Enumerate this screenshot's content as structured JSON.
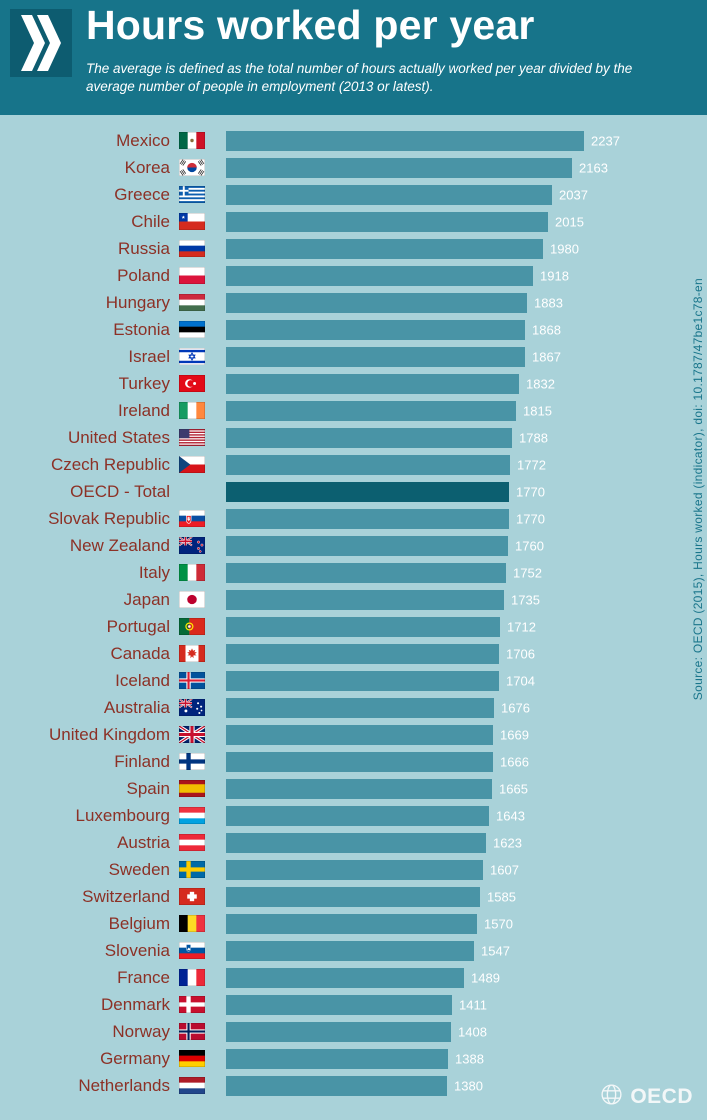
{
  "header": {
    "title": "Hours worked per year",
    "subtitle": "The average is defined as the total number of hours actually worked per year divided by the average number of people in employment (2013 or latest)."
  },
  "source_note": "Source: OECD (2015), Hours worked (indicator), doi: 10.1787/47be1c78-en",
  "footer": {
    "logo_text": "OECD"
  },
  "colors": {
    "header_bg": "#17748a",
    "logo_bg": "#0d5c70",
    "page_bg": "#a9d2d9",
    "bar": "#4994a6",
    "bar_highlight": "#0c5f70",
    "label_text": "#8c3126",
    "value_text": "#ffffff",
    "source_text": "#19758b"
  },
  "chart_data": {
    "type": "bar",
    "orientation": "horizontal",
    "title": "Hours worked per year",
    "value_labels_shown": true,
    "xlim": [
      0,
      2300
    ],
    "highlight_index": 13,
    "highlight_category": "OECD - Total",
    "categories": [
      "Mexico",
      "Korea",
      "Greece",
      "Chile",
      "Russia",
      "Poland",
      "Hungary",
      "Estonia",
      "Israel",
      "Turkey",
      "Ireland",
      "United States",
      "Czech Republic",
      "OECD - Total",
      "Slovak Republic",
      "New Zealand",
      "Italy",
      "Japan",
      "Portugal",
      "Canada",
      "Iceland",
      "Australia",
      "United Kingdom",
      "Finland",
      "Spain",
      "Luxembourg",
      "Austria",
      "Sweden",
      "Switzerland",
      "Belgium",
      "Slovenia",
      "France",
      "Denmark",
      "Norway",
      "Germany",
      "Netherlands"
    ],
    "values": [
      2237,
      2163,
      2037,
      2015,
      1980,
      1918,
      1883,
      1868,
      1867,
      1832,
      1815,
      1788,
      1772,
      1770,
      1770,
      1760,
      1752,
      1735,
      1712,
      1706,
      1704,
      1676,
      1669,
      1666,
      1665,
      1643,
      1623,
      1607,
      1585,
      1570,
      1547,
      1489,
      1411,
      1408,
      1388,
      1380
    ],
    "flags": [
      {
        "t": "v",
        "c": [
          "#006847",
          "#ffffff",
          "#ce1126"
        ],
        "emblem": "#8a6d3b"
      },
      {
        "t": "kr",
        "bg": "#ffffff",
        "red": "#cd2e3a",
        "blue": "#0047a0",
        "marks": "#222222"
      },
      {
        "t": "gr",
        "blue": "#0d5eaf",
        "white": "#ffffff"
      },
      {
        "t": "cl",
        "red": "#d52b1e",
        "blue": "#0039a6",
        "white": "#ffffff"
      },
      {
        "t": "h",
        "c": [
          "#ffffff",
          "#0039a6",
          "#d52b1e"
        ]
      },
      {
        "t": "h",
        "c": [
          "#ffffff",
          "#dc143c"
        ]
      },
      {
        "t": "h",
        "c": [
          "#cd2a3e",
          "#ffffff",
          "#436f4d"
        ]
      },
      {
        "t": "h",
        "c": [
          "#0072ce",
          "#000000",
          "#ffffff"
        ]
      },
      {
        "t": "il",
        "blue": "#0038b8",
        "white": "#ffffff"
      },
      {
        "t": "tr",
        "red": "#e30a17",
        "white": "#ffffff"
      },
      {
        "t": "v",
        "c": [
          "#169b62",
          "#ffffff",
          "#ff883e"
        ]
      },
      {
        "t": "us",
        "red": "#b22234",
        "white": "#ffffff",
        "blue": "#3c3b6e"
      },
      {
        "t": "cz",
        "white": "#ffffff",
        "red": "#d7141a",
        "blue": "#11457e"
      },
      null,
      {
        "t": "sk",
        "c": [
          "#ffffff",
          "#0b4ea2",
          "#ee1c25"
        ],
        "shield": "#ee1c25"
      },
      {
        "t": "nzau",
        "bg": "#00247d",
        "stars": [
          [
            22.5,
            6,
            1.4,
            "#cc142b"
          ],
          [
            26.5,
            9.5,
            1.4,
            "#cc142b"
          ],
          [
            22.5,
            13.5,
            1.4,
            "#cc142b"
          ],
          [
            24.5,
            17,
            1.2,
            "#cc142b"
          ]
        ]
      },
      {
        "t": "v",
        "c": [
          "#009246",
          "#ffffff",
          "#ce2b37"
        ]
      },
      {
        "t": "disc",
        "bg": "#ffffff",
        "fg": "#bc002d"
      },
      {
        "t": "pt",
        "green": "#046a38",
        "red": "#da291c",
        "yellow": "#ffe900"
      },
      {
        "t": "ca",
        "red": "#d52b1e",
        "white": "#ffffff"
      },
      {
        "t": "nordic",
        "bg": "#02529c",
        "cross": "#ffffff",
        "inner": "#dc1e35"
      },
      {
        "t": "nzau",
        "bg": "#00247d",
        "stars": [
          [
            8,
            14,
            1.7,
            "#ffffff"
          ],
          [
            22,
            5,
            1.2,
            "#ffffff"
          ],
          [
            25.5,
            9,
            1.2,
            "#ffffff"
          ],
          [
            21,
            11.5,
            1.2,
            "#ffffff"
          ],
          [
            26,
            13.5,
            1.0,
            "#ffffff"
          ],
          [
            23.5,
            16.5,
            1.2,
            "#ffffff"
          ]
        ]
      },
      {
        "t": "uk",
        "blue": "#012169",
        "white": "#ffffff",
        "red": "#c8102e"
      },
      {
        "t": "nordic",
        "bg": "#ffffff",
        "cross": "#003580"
      },
      {
        "t": "h",
        "c": [
          "#aa151b",
          "#f1bf00",
          "#aa151b"
        ],
        "w": [
          1,
          2,
          1
        ]
      },
      {
        "t": "h",
        "c": [
          "#ef3340",
          "#ffffff",
          "#00a2e1"
        ]
      },
      {
        "t": "h",
        "c": [
          "#ed2939",
          "#ffffff",
          "#ed2939"
        ]
      },
      {
        "t": "nordic",
        "bg": "#006aa7",
        "cross": "#fecc00"
      },
      {
        "t": "ch",
        "red": "#d52b1e",
        "white": "#ffffff"
      },
      {
        "t": "v",
        "c": [
          "#000000",
          "#fdda24",
          "#ef3340"
        ]
      },
      {
        "t": "si",
        "c": [
          "#ffffff",
          "#0056a3",
          "#ed1c24"
        ],
        "shield": "#0056a3"
      },
      {
        "t": "v",
        "c": [
          "#002395",
          "#ffffff",
          "#ed2939"
        ]
      },
      {
        "t": "nordic",
        "bg": "#c8102e",
        "cross": "#ffffff"
      },
      {
        "t": "nordic",
        "bg": "#ba0c2f",
        "cross": "#ffffff",
        "inner": "#00205b"
      },
      {
        "t": "h",
        "c": [
          "#000000",
          "#dd0000",
          "#ffce00"
        ]
      },
      {
        "t": "h",
        "c": [
          "#ae1c28",
          "#ffffff",
          "#21468b"
        ]
      }
    ]
  }
}
